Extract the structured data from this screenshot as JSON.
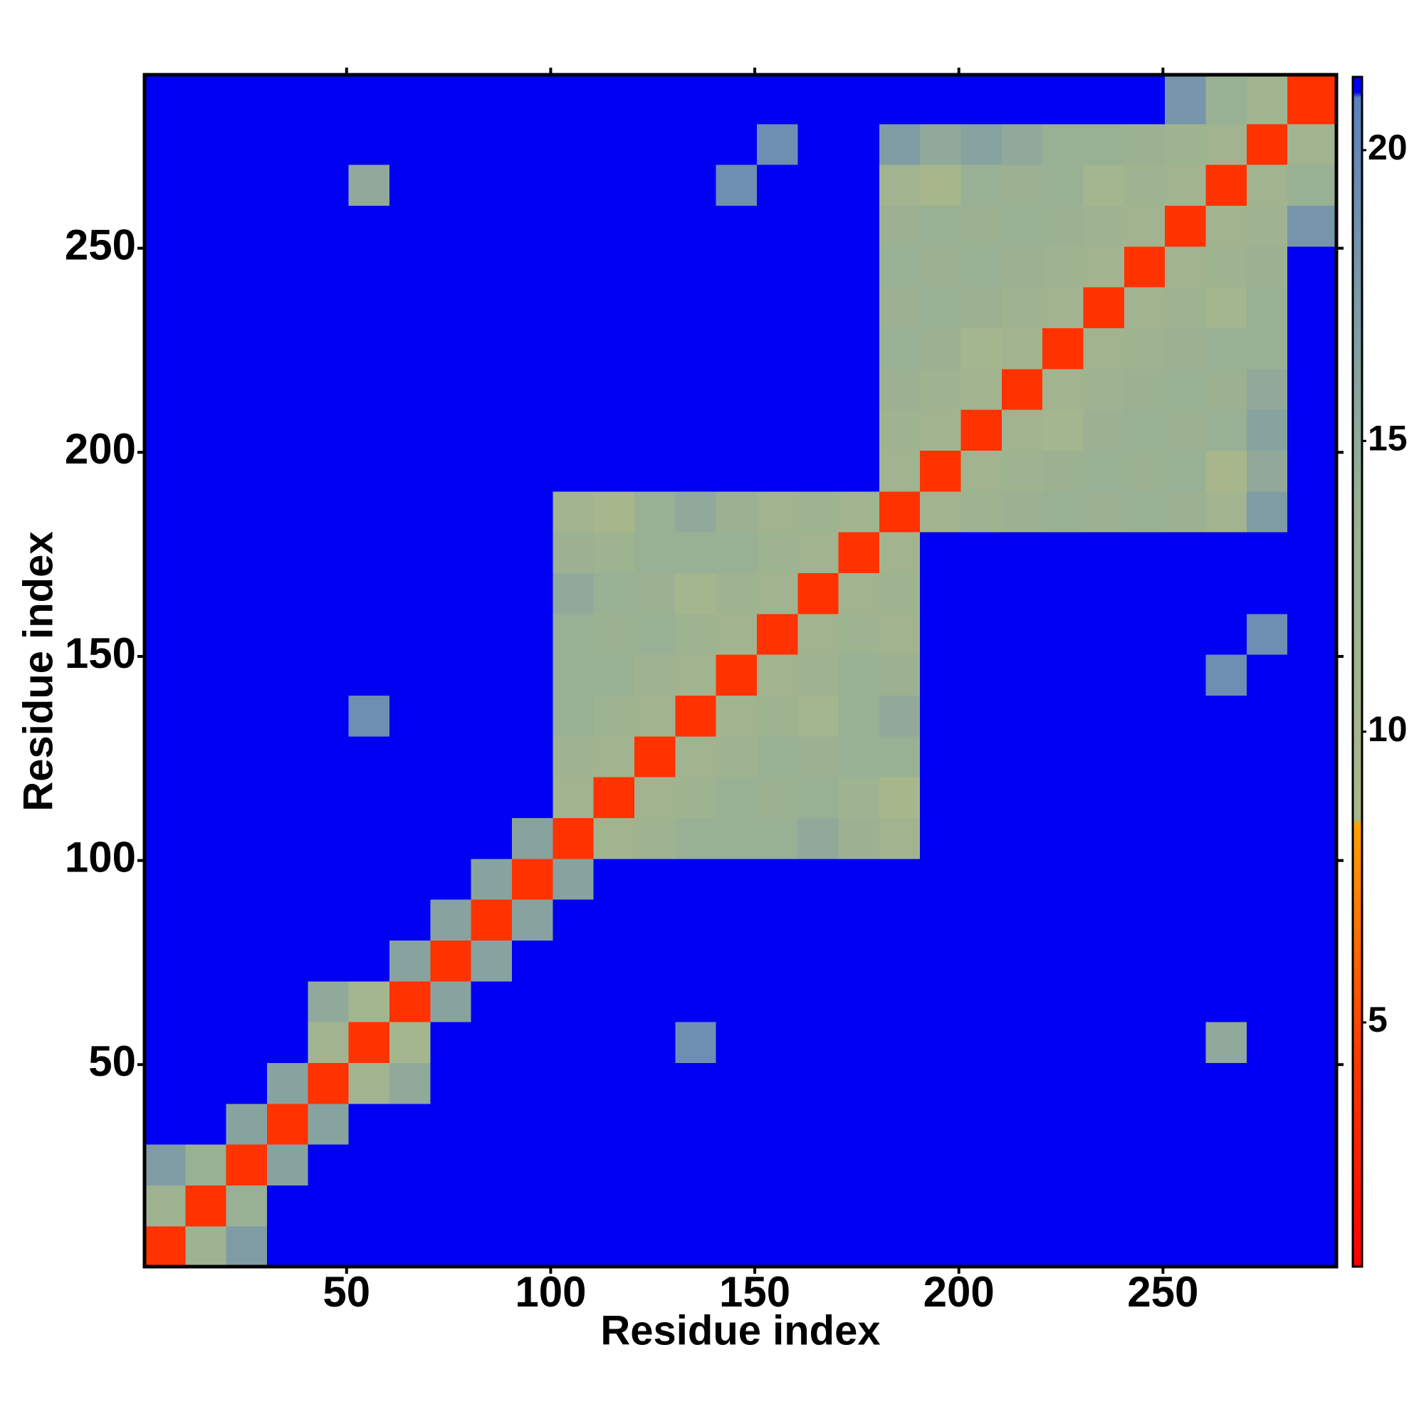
{
  "chart_data": {
    "type": "heatmap",
    "x_label": "Residue index",
    "y_label": "Residue index",
    "xlim": [
      0.5,
      292.5
    ],
    "ylim": [
      0.5,
      292.5
    ],
    "xticks": [
      50,
      100,
      150,
      200,
      250
    ],
    "yticks": [
      50,
      100,
      150,
      200,
      250
    ],
    "zlim": [
      0.8,
      21.26
    ],
    "zticks": [
      5,
      10,
      15,
      20
    ],
    "colorscale": [
      {
        "value": 0.8,
        "color": "#ff0000"
      },
      {
        "value": 4.5,
        "color": "#ff3a00"
      },
      {
        "value": 8.4,
        "color": "#ffa000"
      },
      {
        "value": 8.5,
        "color": "#a8b88a"
      },
      {
        "value": 14,
        "color": "#98b094"
      },
      {
        "value": 19.5,
        "color": "#6a8cb4"
      },
      {
        "value": 20.9,
        "color": "#5a80c0"
      },
      {
        "value": 21,
        "color": "#0000f2"
      },
      {
        "value": 21.26,
        "color": "#0000f2"
      }
    ],
    "xbins": [
      0.5,
      10.5,
      20.5,
      30.5,
      40.5,
      50.5,
      60.5,
      70.5,
      80.5,
      90.5,
      100.5,
      110.5,
      120.5,
      130.5,
      140.5,
      150.5,
      160.5,
      170.5,
      180.5,
      190.5,
      200.5,
      210.5,
      220.5,
      230.5,
      240.5,
      250.5,
      260.5,
      270.5,
      280.5,
      292.5
    ],
    "ybins": [
      0.5,
      10.5,
      20.5,
      30.5,
      40.5,
      50.5,
      60.5,
      70.5,
      80.5,
      90.5,
      100.5,
      110.5,
      120.5,
      130.5,
      140.5,
      150.5,
      160.5,
      170.5,
      180.5,
      190.5,
      200.5,
      210.5,
      220.5,
      230.5,
      240.5,
      250.5,
      260.5,
      270.5,
      280.5,
      292.5
    ],
    "z": [
      [
        4,
        12,
        17,
        21,
        21,
        21,
        21,
        21,
        21,
        21,
        21,
        21,
        21,
        21,
        21,
        21,
        21,
        21,
        21,
        21,
        21,
        21,
        21,
        21,
        21,
        21,
        21,
        21,
        21
      ],
      [
        12,
        4,
        14,
        21,
        21,
        21,
        21,
        21,
        21,
        21,
        21,
        21,
        21,
        21,
        21,
        21,
        21,
        21,
        21,
        21,
        21,
        21,
        21,
        21,
        21,
        21,
        21,
        21,
        21
      ],
      [
        17,
        14,
        4,
        16,
        21,
        21,
        21,
        21,
        21,
        21,
        21,
        21,
        21,
        21,
        21,
        21,
        21,
        21,
        21,
        21,
        21,
        21,
        21,
        21,
        21,
        21,
        21,
        21,
        21
      ],
      [
        21,
        21,
        16,
        4,
        16,
        21,
        21,
        21,
        21,
        21,
        21,
        21,
        21,
        21,
        21,
        21,
        21,
        21,
        21,
        21,
        21,
        21,
        21,
        21,
        21,
        21,
        21,
        21,
        21
      ],
      [
        21,
        21,
        21,
        16,
        4,
        11,
        15,
        21,
        21,
        21,
        21,
        21,
        21,
        21,
        21,
        21,
        21,
        21,
        21,
        21,
        21,
        21,
        21,
        21,
        21,
        21,
        21,
        21,
        21
      ],
      [
        21,
        21,
        21,
        21,
        11,
        4,
        10,
        21,
        21,
        21,
        21,
        21,
        21,
        19,
        21,
        21,
        21,
        21,
        21,
        21,
        21,
        21,
        21,
        21,
        21,
        21,
        15,
        21,
        21
      ],
      [
        21,
        21,
        21,
        21,
        15,
        10,
        4,
        16,
        21,
        21,
        21,
        21,
        21,
        21,
        21,
        21,
        21,
        21,
        21,
        21,
        21,
        21,
        21,
        21,
        21,
        21,
        21,
        21,
        21
      ],
      [
        21,
        21,
        21,
        21,
        21,
        21,
        16,
        4,
        16,
        21,
        21,
        21,
        21,
        21,
        21,
        21,
        21,
        21,
        21,
        21,
        21,
        21,
        21,
        21,
        21,
        21,
        21,
        21,
        21
      ],
      [
        21,
        21,
        21,
        21,
        21,
        21,
        21,
        16,
        4,
        16,
        21,
        21,
        21,
        21,
        21,
        21,
        21,
        21,
        21,
        21,
        21,
        21,
        21,
        21,
        21,
        21,
        21,
        21,
        21
      ],
      [
        21,
        21,
        21,
        21,
        21,
        21,
        21,
        21,
        16,
        4,
        16,
        21,
        21,
        21,
        21,
        21,
        21,
        21,
        21,
        21,
        21,
        21,
        21,
        21,
        21,
        21,
        21,
        21,
        21
      ],
      [
        21,
        21,
        21,
        21,
        21,
        21,
        21,
        21,
        21,
        16,
        4,
        11,
        12,
        14,
        14,
        14,
        15,
        13,
        11,
        21,
        21,
        21,
        21,
        21,
        21,
        21,
        21,
        21,
        21
      ],
      [
        21,
        21,
        21,
        21,
        21,
        21,
        21,
        21,
        21,
        21,
        11,
        4,
        11,
        12,
        14,
        13,
        14,
        12,
        9,
        21,
        21,
        21,
        21,
        21,
        21,
        21,
        21,
        21,
        21
      ],
      [
        21,
        21,
        21,
        21,
        21,
        21,
        21,
        21,
        21,
        21,
        12,
        11,
        4,
        11,
        12,
        14,
        13,
        14,
        14,
        21,
        21,
        21,
        21,
        21,
        21,
        21,
        21,
        21,
        21
      ],
      [
        21,
        21,
        21,
        21,
        21,
        19,
        21,
        21,
        21,
        21,
        14,
        12,
        11,
        4,
        11,
        12,
        10,
        14,
        15,
        21,
        21,
        21,
        21,
        21,
        21,
        21,
        21,
        21,
        21
      ],
      [
        21,
        21,
        21,
        21,
        21,
        21,
        21,
        21,
        21,
        21,
        14,
        14,
        12,
        11,
        4,
        11,
        12,
        14,
        13,
        21,
        21,
        21,
        21,
        21,
        21,
        21,
        19,
        21,
        21
      ],
      [
        21,
        21,
        21,
        21,
        21,
        21,
        21,
        21,
        21,
        21,
        14,
        13,
        14,
        12,
        11,
        4,
        11,
        12,
        11,
        21,
        21,
        21,
        21,
        21,
        21,
        21,
        21,
        19,
        21
      ],
      [
        21,
        21,
        21,
        21,
        21,
        21,
        21,
        21,
        21,
        21,
        15,
        14,
        13,
        10,
        12,
        11,
        4,
        11,
        12,
        21,
        21,
        21,
        21,
        21,
        21,
        21,
        21,
        21,
        21
      ],
      [
        21,
        21,
        21,
        21,
        21,
        21,
        21,
        21,
        21,
        21,
        13,
        12,
        14,
        14,
        14,
        12,
        11,
        4,
        11,
        21,
        21,
        21,
        21,
        21,
        21,
        21,
        21,
        21,
        21
      ],
      [
        21,
        21,
        21,
        21,
        21,
        21,
        21,
        21,
        21,
        21,
        11,
        9,
        14,
        15,
        13,
        11,
        12,
        11,
        4,
        11,
        12,
        13,
        14,
        13,
        14,
        13,
        11,
        17,
        21
      ],
      [
        21,
        21,
        21,
        21,
        21,
        21,
        21,
        21,
        21,
        21,
        21,
        21,
        21,
        21,
        21,
        21,
        21,
        21,
        11,
        4,
        11,
        12,
        13,
        14,
        13,
        14,
        9,
        15,
        21
      ],
      [
        21,
        21,
        21,
        21,
        21,
        21,
        21,
        21,
        21,
        21,
        21,
        21,
        21,
        21,
        21,
        21,
        21,
        21,
        12,
        11,
        4,
        11,
        10,
        13,
        14,
        13,
        14,
        16,
        21
      ],
      [
        21,
        21,
        21,
        21,
        21,
        21,
        21,
        21,
        21,
        21,
        21,
        21,
        21,
        21,
        21,
        21,
        21,
        21,
        13,
        12,
        11,
        4,
        11,
        12,
        13,
        14,
        13,
        15,
        21
      ],
      [
        21,
        21,
        21,
        21,
        21,
        21,
        21,
        21,
        21,
        21,
        21,
        21,
        21,
        21,
        21,
        21,
        21,
        21,
        14,
        13,
        10,
        11,
        4,
        11,
        12,
        13,
        14,
        14,
        21
      ],
      [
        21,
        21,
        21,
        21,
        21,
        21,
        21,
        21,
        21,
        21,
        21,
        21,
        21,
        21,
        21,
        21,
        21,
        21,
        13,
        14,
        13,
        12,
        11,
        4,
        11,
        12,
        10,
        14,
        21
      ],
      [
        21,
        21,
        21,
        21,
        21,
        21,
        21,
        21,
        21,
        21,
        21,
        21,
        21,
        21,
        21,
        21,
        21,
        21,
        14,
        13,
        14,
        13,
        12,
        11,
        4,
        11,
        12,
        13,
        21
      ],
      [
        21,
        21,
        21,
        21,
        21,
        21,
        21,
        21,
        21,
        21,
        21,
        21,
        21,
        21,
        21,
        21,
        21,
        21,
        13,
        14,
        13,
        14,
        13,
        12,
        11,
        4,
        11,
        12,
        18
      ],
      [
        21,
        21,
        21,
        21,
        21,
        15,
        21,
        21,
        21,
        21,
        21,
        21,
        21,
        21,
        19,
        21,
        21,
        21,
        11,
        9,
        14,
        13,
        14,
        10,
        12,
        11,
        4,
        11,
        14
      ],
      [
        21,
        21,
        21,
        21,
        21,
        21,
        21,
        21,
        21,
        21,
        21,
        21,
        21,
        21,
        21,
        19,
        21,
        21,
        17,
        15,
        16,
        15,
        14,
        14,
        13,
        12,
        11,
        4,
        11
      ],
      [
        21,
        21,
        21,
        21,
        21,
        21,
        21,
        21,
        21,
        21,
        21,
        21,
        21,
        21,
        21,
        21,
        21,
        21,
        21,
        21,
        21,
        21,
        21,
        21,
        21,
        18,
        14,
        11,
        4
      ]
    ]
  }
}
